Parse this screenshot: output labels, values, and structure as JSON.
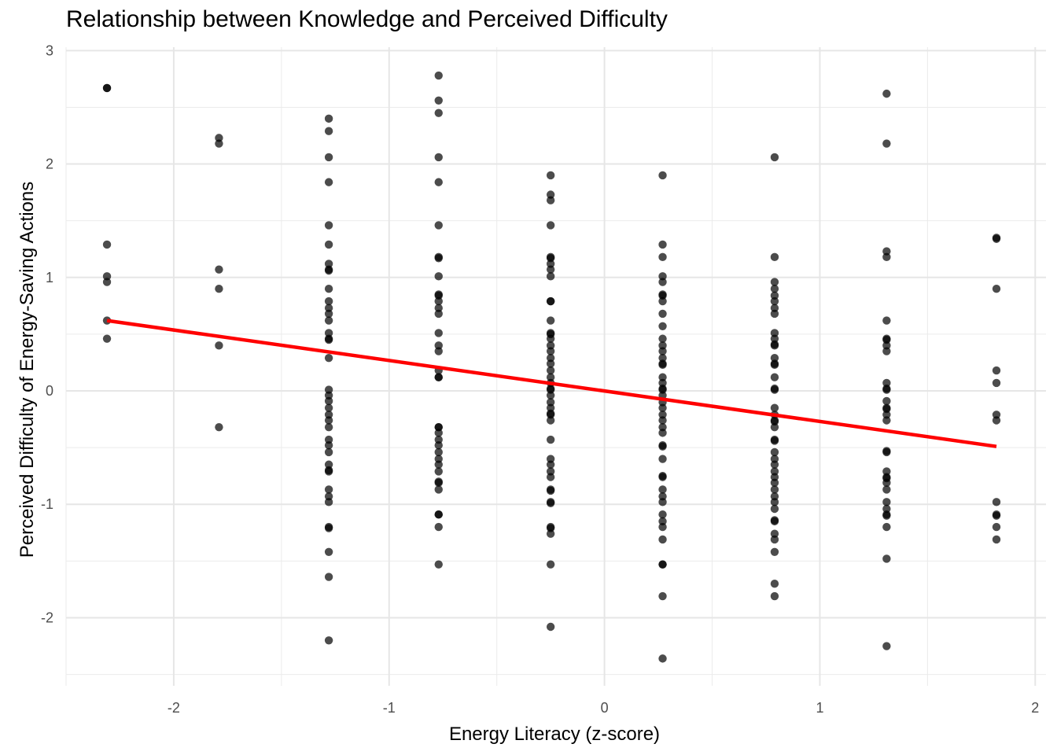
{
  "chart_data": {
    "type": "scatter",
    "title": "Relationship between Knowledge and Perceived Difficulty",
    "xlabel": "Energy Literacy (z-score)",
    "ylabel": "Perceived Difficulty of Energy-Saving Actions",
    "xlim": [
      -2.5,
      2.05
    ],
    "ylim": [
      -2.6,
      3.03
    ],
    "x_ticks": [
      -2,
      -1,
      0,
      1,
      2
    ],
    "y_ticks": [
      -2,
      -1,
      0,
      1,
      2,
      3
    ],
    "x_tick_labels": [
      "-2",
      "-1",
      "0",
      "1",
      "2"
    ],
    "y_tick_labels": [
      "-2",
      "-1",
      "0",
      "1",
      "2",
      "3"
    ],
    "grid": true,
    "point_color": "#000000",
    "point_opacity": 0.7,
    "line_color": "#ff0000",
    "trend_line": {
      "x": [
        -2.31,
        1.82
      ],
      "y": [
        0.62,
        -0.49
      ]
    },
    "points": [
      {
        "x": -2.31,
        "ys": [
          2.67,
          2.67,
          1.29,
          1.01,
          0.96,
          0.62,
          0.46
        ]
      },
      {
        "x": -1.79,
        "ys": [
          2.23,
          2.18,
          1.07,
          0.9,
          0.4,
          -0.32
        ]
      },
      {
        "x": -1.28,
        "ys": [
          2.4,
          2.29,
          2.06,
          1.84,
          1.46,
          1.29,
          1.12,
          1.07,
          1.06,
          0.9,
          0.79,
          0.73,
          0.68,
          0.62,
          0.51,
          0.46,
          0.45,
          0.29,
          0.01,
          -0.04,
          -0.09,
          -0.15,
          -0.21,
          -0.26,
          -0.32,
          -0.43,
          -0.48,
          -0.54,
          -0.65,
          -0.71,
          -0.7,
          -0.87,
          -0.93,
          -0.98,
          -1.2,
          -1.21,
          -1.42,
          -1.64,
          -2.2
        ]
      },
      {
        "x": -0.77,
        "ys": [
          2.78,
          2.56,
          2.45,
          2.06,
          1.84,
          1.46,
          1.18,
          1.17,
          1.01,
          0.85,
          0.84,
          0.79,
          0.73,
          0.68,
          0.51,
          0.4,
          0.35,
          0.18,
          0.12,
          0.12,
          -0.32,
          -0.32,
          -0.37,
          -0.43,
          -0.48,
          -0.54,
          -0.6,
          -0.65,
          -0.71,
          -0.8,
          -0.81,
          -0.87,
          -1.09,
          -1.09,
          -1.2,
          -1.53
        ]
      },
      {
        "x": -0.25,
        "ys": [
          1.9,
          1.73,
          1.68,
          1.46,
          1.18,
          1.17,
          1.12,
          1.07,
          1.01,
          0.79,
          0.79,
          0.62,
          0.51,
          0.5,
          0.46,
          0.4,
          0.35,
          0.29,
          0.24,
          0.18,
          0.12,
          0.07,
          0.02,
          0.01,
          -0.04,
          -0.1,
          -0.15,
          -0.2,
          -0.21,
          -0.26,
          -0.43,
          -0.6,
          -0.65,
          -0.71,
          -0.76,
          -0.87,
          -0.88,
          -0.98,
          -0.99,
          -1.2,
          -1.21,
          -1.26,
          -1.53,
          -2.08
        ]
      },
      {
        "x": 0.27,
        "ys": [
          1.9,
          1.29,
          1.18,
          1.01,
          0.96,
          0.85,
          0.84,
          0.79,
          0.68,
          0.57,
          0.46,
          0.4,
          0.35,
          0.29,
          0.24,
          0.23,
          0.12,
          0.07,
          0.02,
          0.01,
          -0.04,
          -0.1,
          -0.15,
          -0.21,
          -0.26,
          -0.32,
          -0.37,
          -0.48,
          -0.49,
          -0.6,
          -0.75,
          -0.76,
          -0.87,
          -0.93,
          -0.98,
          -1.09,
          -1.15,
          -1.2,
          -1.31,
          -1.53,
          -1.53,
          -1.81,
          -2.36
        ]
      },
      {
        "x": 0.79,
        "ys": [
          2.06,
          1.18,
          0.96,
          0.9,
          0.84,
          0.79,
          0.73,
          0.68,
          0.51,
          0.46,
          0.4,
          0.41,
          0.29,
          0.24,
          0.23,
          0.12,
          0.01,
          0.02,
          -0.15,
          -0.21,
          -0.26,
          -0.27,
          -0.32,
          -0.43,
          -0.44,
          -0.54,
          -0.6,
          -0.65,
          -0.71,
          -0.76,
          -0.81,
          -0.87,
          -0.93,
          -0.98,
          -1.04,
          -1.15,
          -1.14,
          -1.26,
          -1.31,
          -1.42,
          -1.7,
          -1.81
        ]
      },
      {
        "x": 1.31,
        "ys": [
          2.62,
          2.18,
          1.23,
          1.18,
          0.62,
          0.46,
          0.45,
          0.4,
          0.35,
          0.07,
          0.02,
          0.01,
          -0.09,
          -0.15,
          -0.16,
          -0.21,
          -0.26,
          -0.54,
          -0.53,
          -0.71,
          -0.76,
          -0.77,
          -0.81,
          -0.87,
          -0.98,
          -1.04,
          -1.09,
          -1.1,
          -1.2,
          -1.48,
          -2.25
        ]
      },
      {
        "x": 1.82,
        "ys": [
          1.34,
          1.35,
          0.9,
          0.18,
          0.07,
          -0.21,
          -0.26,
          -0.98,
          -1.09,
          -1.1,
          -1.2,
          -1.31
        ]
      }
    ]
  }
}
